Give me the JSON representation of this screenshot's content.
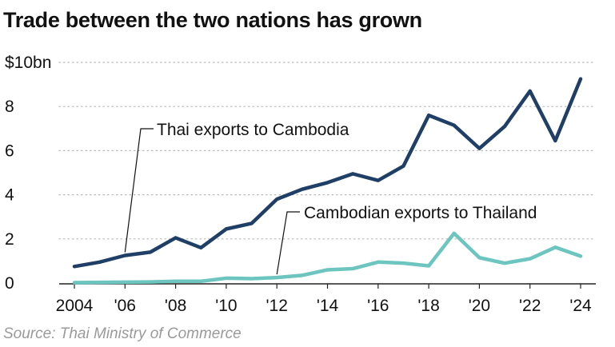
{
  "chart_data": {
    "type": "line",
    "title": "Trade between the two nations has grown",
    "source": "Source: Thai Ministry of Commerce",
    "x": [
      2004,
      2005,
      2006,
      2007,
      2008,
      2009,
      2010,
      2011,
      2012,
      2013,
      2014,
      2015,
      2016,
      2017,
      2018,
      2019,
      2020,
      2021,
      2022,
      2023,
      2024
    ],
    "x_tick_labels": [
      "2004",
      "'06",
      "'08",
      "'10",
      "'12",
      "'14",
      "'16",
      "'18",
      "'20",
      "'22",
      "'24"
    ],
    "y_tick_labels": [
      "0",
      "2",
      "4",
      "6",
      "8",
      "$10bn"
    ],
    "ylim": [
      0,
      10
    ],
    "grid": "horizontal dotted",
    "series": [
      {
        "name": "Thai exports to Cambodia",
        "color": "#1f3f66",
        "values": [
          0.75,
          0.95,
          1.25,
          1.4,
          2.05,
          1.6,
          2.45,
          2.7,
          3.8,
          4.25,
          4.55,
          4.95,
          4.65,
          5.3,
          7.6,
          7.15,
          6.1,
          7.1,
          8.7,
          6.45,
          9.25
        ]
      },
      {
        "name": "Cambodian exports to Thailand",
        "color": "#6cc5be",
        "values": [
          0.02,
          0.03,
          0.04,
          0.05,
          0.08,
          0.08,
          0.22,
          0.2,
          0.25,
          0.35,
          0.6,
          0.65,
          0.95,
          0.9,
          0.78,
          2.25,
          1.15,
          0.9,
          1.1,
          1.62,
          1.22
        ]
      }
    ]
  }
}
